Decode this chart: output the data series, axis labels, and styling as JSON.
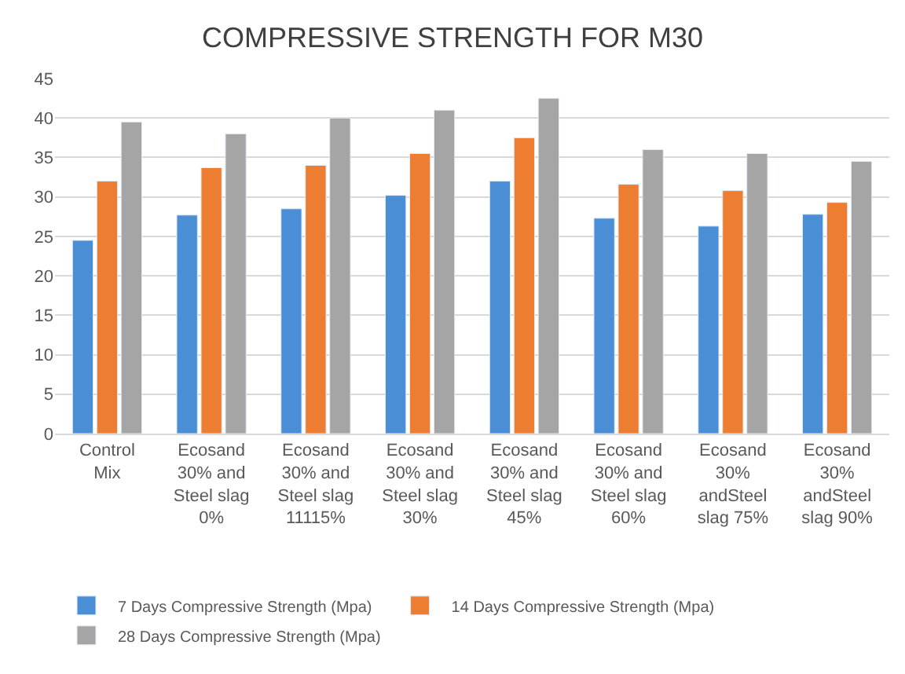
{
  "chart_data": {
    "type": "bar",
    "title": "COMPRESSIVE STRENGTH FOR M30",
    "categories": [
      "Control Mix",
      "Ecosand 30% and Steel slag 0%",
      "Ecosand 30% and Steel slag 11115%",
      "Ecosand 30% and Steel slag 30%",
      "Ecosand 30% and Steel slag 45%",
      "Ecosand 30% and Steel slag 60%",
      "Ecosand 30% andSteel slag 75%",
      "Ecosand 30% andSteel slag 90%"
    ],
    "series": [
      {
        "name": "7 Days Compressive Strength (Mpa)",
        "color": "#4a8fd6",
        "values": [
          24.5,
          27.7,
          28.5,
          30.2,
          32,
          27.3,
          26.3,
          27.8
        ]
      },
      {
        "name": "14 Days Compressive Strength (Mpa)",
        "color": "#ed7d31",
        "values": [
          32,
          33.7,
          34,
          35.5,
          37.5,
          31.6,
          30.8,
          29.3
        ]
      },
      {
        "name": "28 Days Compressive Strength (Mpa)",
        "color": "#a5a5a5",
        "values": [
          39.5,
          38,
          40,
          41,
          42.5,
          36,
          35.5,
          34.5
        ]
      }
    ],
    "ylim": [
      0,
      45
    ],
    "yticks": [
      0,
      5,
      10,
      15,
      20,
      25,
      30,
      35,
      40,
      45
    ],
    "grid": "y",
    "legend": "bottom"
  }
}
